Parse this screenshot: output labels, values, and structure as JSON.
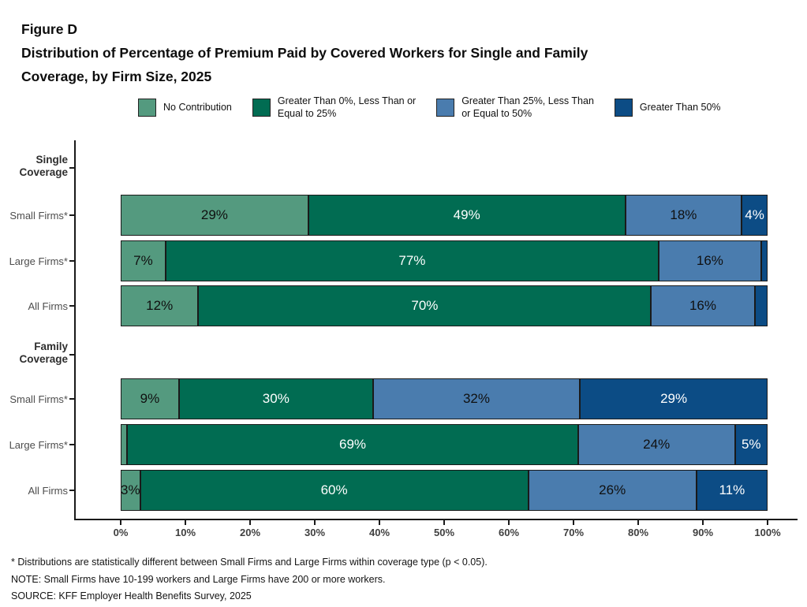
{
  "figure": {
    "label": "Figure D",
    "title_line1": "Distribution of Percentage of Premium Paid by Covered Workers for Single and Family",
    "title_line2": "Coverage, by Firm Size, 2025"
  },
  "colors": {
    "no_contribution": "#549a7f",
    "gt0_le25": "#016c52",
    "gt25_le50": "#4a7cae",
    "gt50": "#0c4c85",
    "segment_border": "#1a1a1a",
    "axis": "#1a1a1a"
  },
  "legend": [
    {
      "name": "No Contribution",
      "color": "#549a7f"
    },
    {
      "name": "Greater Than 0%, Less Than or\nEqual to 25%",
      "color": "#016c52"
    },
    {
      "name": "Greater Than 25%, Less Than\nor Equal to 50%",
      "color": "#4a7cae"
    },
    {
      "name": "Greater Than 50%",
      "color": "#0c4c85"
    }
  ],
  "chart_data": {
    "type": "bar",
    "stacked": true,
    "orientation": "horizontal",
    "title": "Distribution of Percentage of Premium Paid by Covered Workers for Single and Family Coverage, by Firm Size, 2025",
    "series_names": [
      "No Contribution",
      "Greater Than 0%, Less Than or Equal to 25%",
      "Greater Than 25%, Less Than or Equal to 50%",
      "Greater Than 50%"
    ],
    "xlim": [
      0,
      100
    ],
    "x_tick_labels": [
      "0%",
      "10%",
      "20%",
      "30%",
      "40%",
      "50%",
      "60%",
      "70%",
      "80%",
      "90%",
      "100%"
    ],
    "legend_position": "top",
    "groups": [
      {
        "group_label": "Single\nCoverage",
        "rows": [
          {
            "label": "Small Firms*",
            "values": [
              29,
              49,
              18,
              4
            ],
            "value_labels": [
              "29%",
              "49%",
              "18%",
              "4%"
            ]
          },
          {
            "label": "Large Firms*",
            "values": [
              7,
              77,
              16,
              1
            ],
            "value_labels": [
              "7%",
              "77%",
              "16%",
              ""
            ]
          },
          {
            "label": "All Firms",
            "values": [
              12,
              70,
              16,
              2
            ],
            "value_labels": [
              "12%",
              "70%",
              "16%",
              ""
            ]
          }
        ]
      },
      {
        "group_label": "Family\nCoverage",
        "rows": [
          {
            "label": "Small Firms*",
            "values": [
              9,
              30,
              32,
              29
            ],
            "value_labels": [
              "9%",
              "30%",
              "32%",
              "29%"
            ]
          },
          {
            "label": "Large Firms*",
            "values": [
              1,
              69,
              24,
              5
            ],
            "value_labels": [
              "",
              "69%",
              "24%",
              "5%"
            ]
          },
          {
            "label": "All Firms",
            "values": [
              3,
              60,
              26,
              11
            ],
            "value_labels": [
              "3%",
              "60%",
              "26%",
              "11%"
            ]
          }
        ]
      }
    ]
  },
  "footnotes": [
    "* Distributions are statistically different between Small Firms and Large Firms within coverage type (p < 0.05).",
    "NOTE: Small Firms have 10-199 workers and Large Firms have 200 or more workers.",
    "SOURCE: KFF Employer Health Benefits Survey, 2025"
  ]
}
